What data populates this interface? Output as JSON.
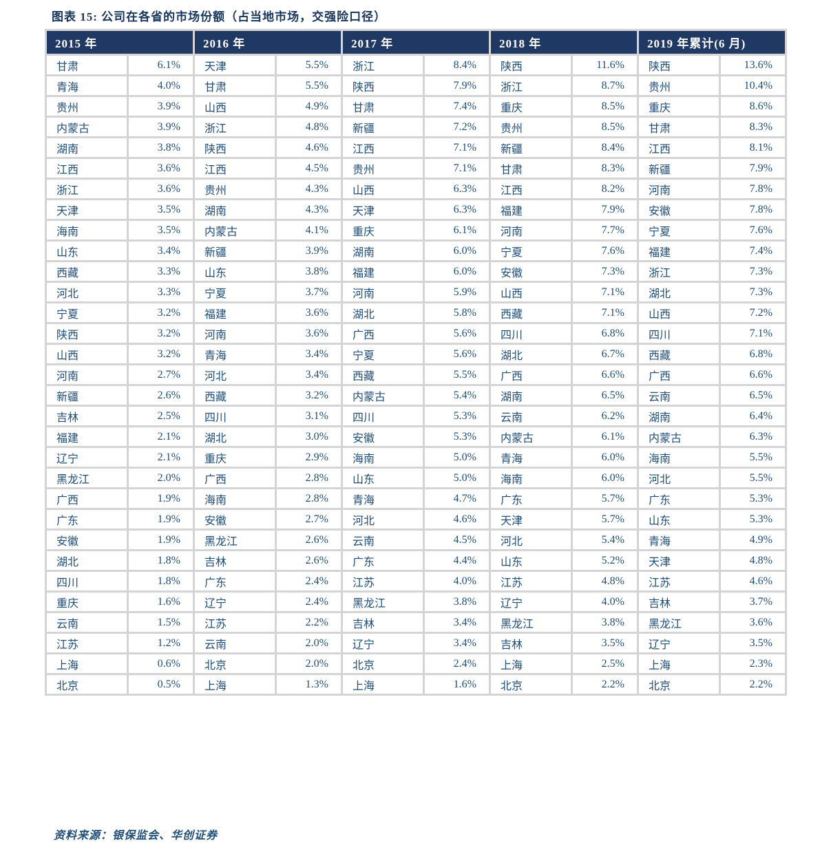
{
  "title": "图表 15:  公司在各省的市场份额（占当地市场，交强险口径）",
  "source": "资料来源：银保监会、华创证券",
  "colors": {
    "header_bg": "#1F3864",
    "header_text": "#FFFFFF",
    "cell_text": "#1F4E79",
    "title_text": "#17365D",
    "grid": "#D4D4D4"
  },
  "table": {
    "columns": [
      {
        "year": "2015 年",
        "rows": [
          {
            "province": "甘肃",
            "share": "6.1%"
          },
          {
            "province": "青海",
            "share": "4.0%"
          },
          {
            "province": "贵州",
            "share": "3.9%"
          },
          {
            "province": "内蒙古",
            "share": "3.9%"
          },
          {
            "province": "湖南",
            "share": "3.8%"
          },
          {
            "province": "江西",
            "share": "3.6%"
          },
          {
            "province": "浙江",
            "share": "3.6%"
          },
          {
            "province": "天津",
            "share": "3.5%"
          },
          {
            "province": "海南",
            "share": "3.5%"
          },
          {
            "province": "山东",
            "share": "3.4%"
          },
          {
            "province": "西藏",
            "share": "3.3%"
          },
          {
            "province": "河北",
            "share": "3.3%"
          },
          {
            "province": "宁夏",
            "share": "3.2%"
          },
          {
            "province": "陕西",
            "share": "3.2%"
          },
          {
            "province": "山西",
            "share": "3.2%"
          },
          {
            "province": "河南",
            "share": "2.7%"
          },
          {
            "province": "新疆",
            "share": "2.6%"
          },
          {
            "province": "吉林",
            "share": "2.5%"
          },
          {
            "province": "福建",
            "share": "2.1%"
          },
          {
            "province": "辽宁",
            "share": "2.1%"
          },
          {
            "province": "黑龙江",
            "share": "2.0%"
          },
          {
            "province": "广西",
            "share": "1.9%"
          },
          {
            "province": "广东",
            "share": "1.9%"
          },
          {
            "province": "安徽",
            "share": "1.9%"
          },
          {
            "province": "湖北",
            "share": "1.8%"
          },
          {
            "province": "四川",
            "share": "1.8%"
          },
          {
            "province": "重庆",
            "share": "1.6%"
          },
          {
            "province": "云南",
            "share": "1.5%"
          },
          {
            "province": "江苏",
            "share": "1.2%"
          },
          {
            "province": "上海",
            "share": "0.6%"
          },
          {
            "province": "北京",
            "share": "0.5%"
          }
        ]
      },
      {
        "year": "2016 年",
        "rows": [
          {
            "province": "天津",
            "share": "5.5%"
          },
          {
            "province": "甘肃",
            "share": "5.5%"
          },
          {
            "province": "山西",
            "share": "4.9%"
          },
          {
            "province": "浙江",
            "share": "4.8%"
          },
          {
            "province": "陕西",
            "share": "4.6%"
          },
          {
            "province": "江西",
            "share": "4.5%"
          },
          {
            "province": "贵州",
            "share": "4.3%"
          },
          {
            "province": "湖南",
            "share": "4.3%"
          },
          {
            "province": "内蒙古",
            "share": "4.1%"
          },
          {
            "province": "新疆",
            "share": "3.9%"
          },
          {
            "province": "山东",
            "share": "3.8%"
          },
          {
            "province": "宁夏",
            "share": "3.7%"
          },
          {
            "province": "福建",
            "share": "3.6%"
          },
          {
            "province": "河南",
            "share": "3.6%"
          },
          {
            "province": "青海",
            "share": "3.4%"
          },
          {
            "province": "河北",
            "share": "3.4%"
          },
          {
            "province": "西藏",
            "share": "3.2%"
          },
          {
            "province": "四川",
            "share": "3.1%"
          },
          {
            "province": "湖北",
            "share": "3.0%"
          },
          {
            "province": "重庆",
            "share": "2.9%"
          },
          {
            "province": "广西",
            "share": "2.8%"
          },
          {
            "province": "海南",
            "share": "2.8%"
          },
          {
            "province": "安徽",
            "share": "2.7%"
          },
          {
            "province": "黑龙江",
            "share": "2.6%"
          },
          {
            "province": "吉林",
            "share": "2.6%"
          },
          {
            "province": "广东",
            "share": "2.4%"
          },
          {
            "province": "辽宁",
            "share": "2.4%"
          },
          {
            "province": "江苏",
            "share": "2.2%"
          },
          {
            "province": "云南",
            "share": "2.0%"
          },
          {
            "province": "北京",
            "share": "2.0%"
          },
          {
            "province": "上海",
            "share": "1.3%"
          }
        ]
      },
      {
        "year": "2017 年",
        "rows": [
          {
            "province": "浙江",
            "share": "8.4%"
          },
          {
            "province": "陕西",
            "share": "7.9%"
          },
          {
            "province": "甘肃",
            "share": "7.4%"
          },
          {
            "province": "新疆",
            "share": "7.2%"
          },
          {
            "province": "江西",
            "share": "7.1%"
          },
          {
            "province": "贵州",
            "share": "7.1%"
          },
          {
            "province": "山西",
            "share": "6.3%"
          },
          {
            "province": "天津",
            "share": "6.3%"
          },
          {
            "province": "重庆",
            "share": "6.1%"
          },
          {
            "province": "湖南",
            "share": "6.0%"
          },
          {
            "province": "福建",
            "share": "6.0%"
          },
          {
            "province": "河南",
            "share": "5.9%"
          },
          {
            "province": "湖北",
            "share": "5.8%"
          },
          {
            "province": "广西",
            "share": "5.6%"
          },
          {
            "province": "宁夏",
            "share": "5.6%"
          },
          {
            "province": "西藏",
            "share": "5.5%"
          },
          {
            "province": "内蒙古",
            "share": "5.4%"
          },
          {
            "province": "四川",
            "share": "5.3%"
          },
          {
            "province": "安徽",
            "share": "5.3%"
          },
          {
            "province": "海南",
            "share": "5.0%"
          },
          {
            "province": "山东",
            "share": "5.0%"
          },
          {
            "province": "青海",
            "share": "4.7%"
          },
          {
            "province": "河北",
            "share": "4.6%"
          },
          {
            "province": "云南",
            "share": "4.5%"
          },
          {
            "province": "广东",
            "share": "4.4%"
          },
          {
            "province": "江苏",
            "share": "4.0%"
          },
          {
            "province": "黑龙江",
            "share": "3.8%"
          },
          {
            "province": "吉林",
            "share": "3.4%"
          },
          {
            "province": "辽宁",
            "share": "3.4%"
          },
          {
            "province": "北京",
            "share": "2.4%"
          },
          {
            "province": "上海",
            "share": "1.6%"
          }
        ]
      },
      {
        "year": "2018 年",
        "rows": [
          {
            "province": "陕西",
            "share": "11.6%"
          },
          {
            "province": "浙江",
            "share": "8.7%"
          },
          {
            "province": "重庆",
            "share": "8.5%"
          },
          {
            "province": "贵州",
            "share": "8.5%"
          },
          {
            "province": "新疆",
            "share": "8.4%"
          },
          {
            "province": "甘肃",
            "share": "8.3%"
          },
          {
            "province": "江西",
            "share": "8.2%"
          },
          {
            "province": "福建",
            "share": "7.9%"
          },
          {
            "province": "河南",
            "share": "7.7%"
          },
          {
            "province": "宁夏",
            "share": "7.6%"
          },
          {
            "province": "安徽",
            "share": "7.3%"
          },
          {
            "province": "山西",
            "share": "7.1%"
          },
          {
            "province": "西藏",
            "share": "7.1%"
          },
          {
            "province": "四川",
            "share": "6.8%"
          },
          {
            "province": "湖北",
            "share": "6.7%"
          },
          {
            "province": "广西",
            "share": "6.6%"
          },
          {
            "province": "湖南",
            "share": "6.5%"
          },
          {
            "province": "云南",
            "share": "6.2%"
          },
          {
            "province": "内蒙古",
            "share": "6.1%"
          },
          {
            "province": "青海",
            "share": "6.0%"
          },
          {
            "province": "海南",
            "share": "6.0%"
          },
          {
            "province": "广东",
            "share": "5.7%"
          },
          {
            "province": "天津",
            "share": "5.7%"
          },
          {
            "province": "河北",
            "share": "5.4%"
          },
          {
            "province": "山东",
            "share": "5.2%"
          },
          {
            "province": "江苏",
            "share": "4.8%"
          },
          {
            "province": "辽宁",
            "share": "4.0%"
          },
          {
            "province": "黑龙江",
            "share": "3.8%"
          },
          {
            "province": "吉林",
            "share": "3.5%"
          },
          {
            "province": "上海",
            "share": "2.5%"
          },
          {
            "province": "北京",
            "share": "2.2%"
          }
        ]
      },
      {
        "year": "2019 年累计(6 月)",
        "rows": [
          {
            "province": "陕西",
            "share": "13.6%"
          },
          {
            "province": "贵州",
            "share": "10.4%"
          },
          {
            "province": "重庆",
            "share": "8.6%"
          },
          {
            "province": "甘肃",
            "share": "8.3%"
          },
          {
            "province": "江西",
            "share": "8.1%"
          },
          {
            "province": "新疆",
            "share": "7.9%"
          },
          {
            "province": "河南",
            "share": "7.8%"
          },
          {
            "province": "安徽",
            "share": "7.8%"
          },
          {
            "province": "宁夏",
            "share": "7.6%"
          },
          {
            "province": "福建",
            "share": "7.4%"
          },
          {
            "province": "浙江",
            "share": "7.3%"
          },
          {
            "province": "湖北",
            "share": "7.3%"
          },
          {
            "province": "山西",
            "share": "7.2%"
          },
          {
            "province": "四川",
            "share": "7.1%"
          },
          {
            "province": "西藏",
            "share": "6.8%"
          },
          {
            "province": "广西",
            "share": "6.6%"
          },
          {
            "province": "云南",
            "share": "6.5%"
          },
          {
            "province": "湖南",
            "share": "6.4%"
          },
          {
            "province": "内蒙古",
            "share": "6.3%"
          },
          {
            "province": "海南",
            "share": "5.5%"
          },
          {
            "province": "河北",
            "share": "5.5%"
          },
          {
            "province": "广东",
            "share": "5.3%"
          },
          {
            "province": "山东",
            "share": "5.3%"
          },
          {
            "province": "青海",
            "share": "4.9%"
          },
          {
            "province": "天津",
            "share": "4.8%"
          },
          {
            "province": "江苏",
            "share": "4.6%"
          },
          {
            "province": "吉林",
            "share": "3.7%"
          },
          {
            "province": "黑龙江",
            "share": "3.6%"
          },
          {
            "province": "辽宁",
            "share": "3.5%"
          },
          {
            "province": "上海",
            "share": "2.3%"
          },
          {
            "province": "北京",
            "share": "2.2%"
          }
        ]
      }
    ]
  }
}
